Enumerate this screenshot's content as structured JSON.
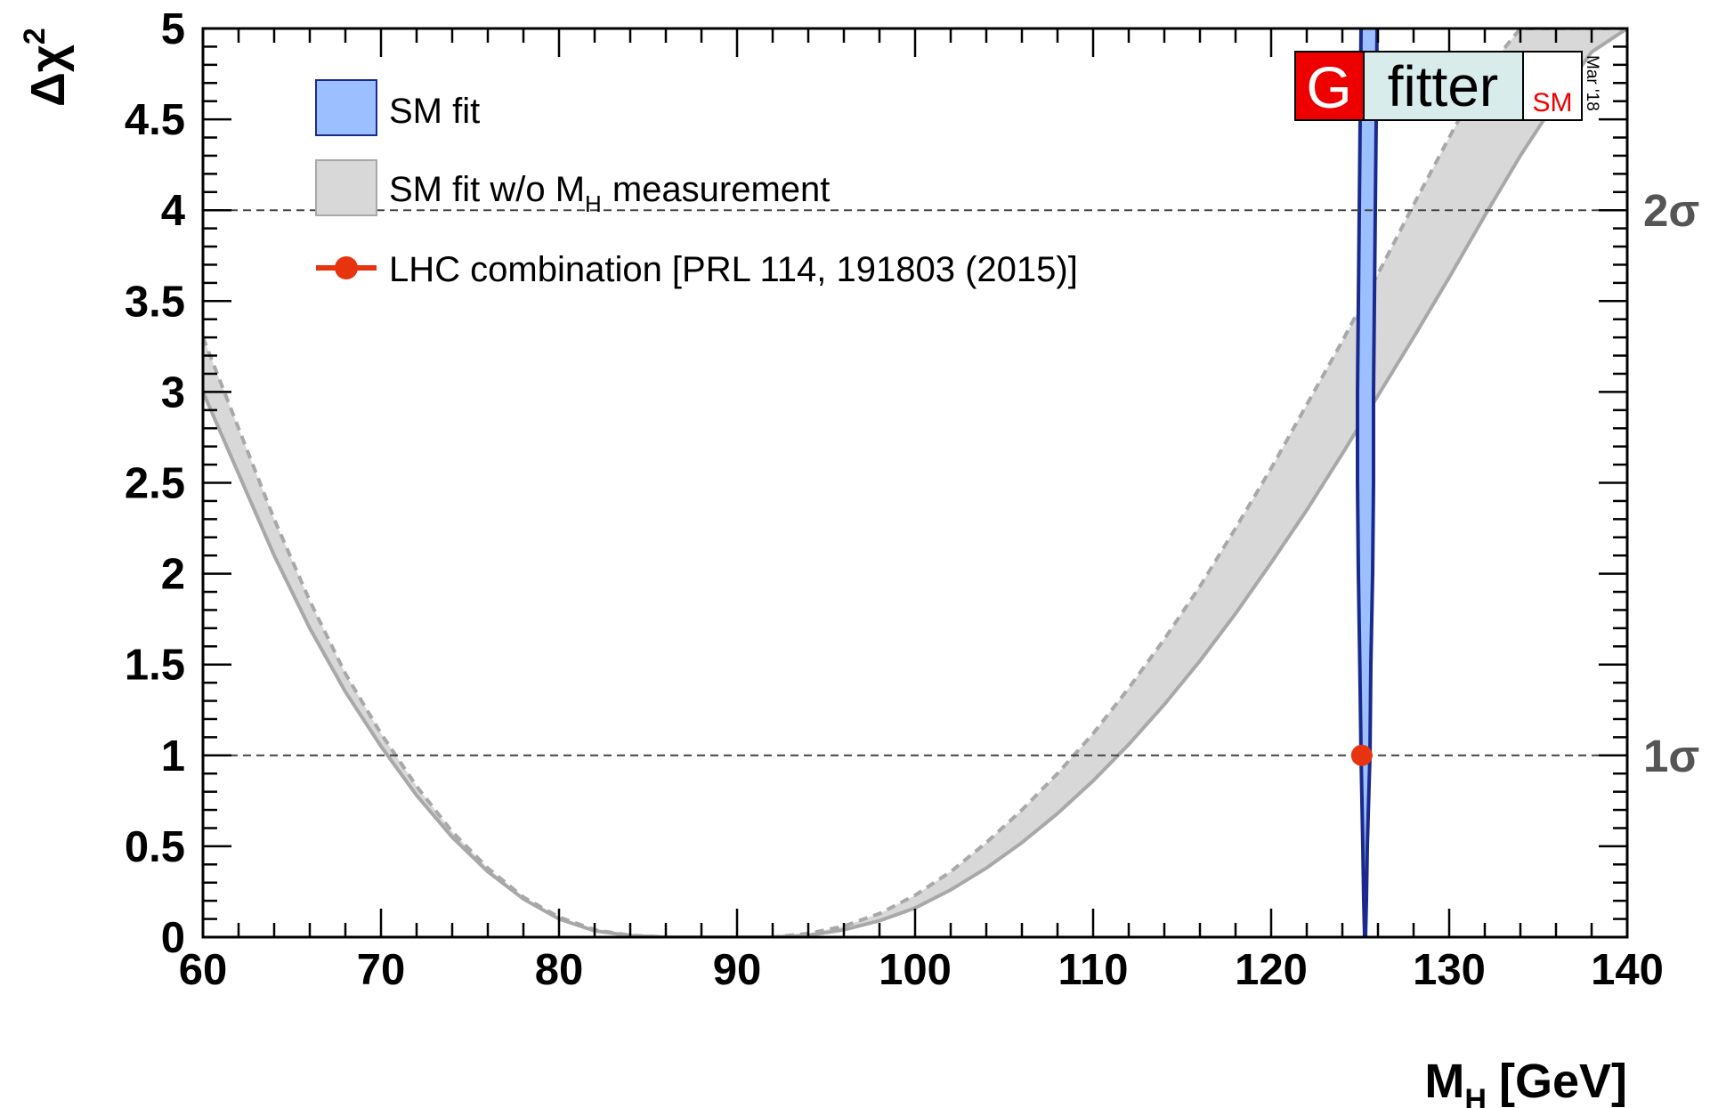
{
  "chart_data": {
    "type": "line",
    "xlabel": "M",
    "xlabel_sub": "H",
    "xlabel_unit": "[GeV]",
    "ylabel_base": "Δχ",
    "ylabel_sup": "2",
    "xlim": [
      60,
      140
    ],
    "ylim": [
      0,
      5
    ],
    "x_ticks": [
      60,
      70,
      80,
      90,
      100,
      110,
      120,
      130,
      140
    ],
    "y_ticks": [
      0,
      0.5,
      1,
      1.5,
      2,
      2.5,
      3,
      3.5,
      4,
      4.5,
      5
    ],
    "y_tick_labels": [
      "0",
      "0.5",
      "1",
      "1.5",
      "2",
      "2.5",
      "3",
      "3.5",
      "4",
      "4.5",
      "5"
    ],
    "grid": false,
    "legend_position": "top-left",
    "series": [
      {
        "name": "SM fit",
        "type": "band",
        "color": "#9cc0ff",
        "edge_color": "#1a2a8c",
        "lower": [
          [
            125.05,
            5.0
          ],
          [
            124.95,
            4.0
          ],
          [
            124.85,
            3.0
          ],
          [
            124.85,
            2.5
          ],
          [
            124.9,
            2.0
          ],
          [
            124.98,
            1.5
          ],
          [
            125.05,
            1.0
          ],
          [
            125.15,
            0.5
          ],
          [
            125.2,
            0.2
          ],
          [
            125.25,
            0.0
          ]
        ],
        "upper": [
          [
            125.95,
            5.0
          ],
          [
            125.85,
            4.0
          ],
          [
            125.75,
            3.0
          ],
          [
            125.75,
            2.5
          ],
          [
            125.7,
            2.0
          ],
          [
            125.6,
            1.5
          ],
          [
            125.55,
            1.0
          ],
          [
            125.4,
            0.5
          ],
          [
            125.35,
            0.2
          ],
          [
            125.3,
            0.0
          ]
        ]
      },
      {
        "name": "SM fit w/o M",
        "name_sub": "H",
        "name_suffix": "measurement",
        "type": "band",
        "color": "#d8d8d8",
        "edge_color": "#a8a8a8",
        "lower": [
          [
            60,
            3.0
          ],
          [
            62,
            2.55
          ],
          [
            64,
            2.1
          ],
          [
            66,
            1.7
          ],
          [
            68,
            1.35
          ],
          [
            70,
            1.05
          ],
          [
            72,
            0.78
          ],
          [
            74,
            0.55
          ],
          [
            76,
            0.36
          ],
          [
            78,
            0.21
          ],
          [
            80,
            0.1
          ],
          [
            82,
            0.035
          ],
          [
            84,
            0.008
          ],
          [
            86,
            0.0
          ],
          [
            88,
            0.0
          ],
          [
            90,
            0.0
          ],
          [
            92,
            0.0
          ],
          [
            94,
            0.01
          ],
          [
            96,
            0.04
          ],
          [
            98,
            0.09
          ],
          [
            100,
            0.16
          ],
          [
            102,
            0.26
          ],
          [
            104,
            0.38
          ],
          [
            106,
            0.52
          ],
          [
            108,
            0.68
          ],
          [
            110,
            0.86
          ],
          [
            112,
            1.06
          ],
          [
            114,
            1.28
          ],
          [
            116,
            1.52
          ],
          [
            118,
            1.78
          ],
          [
            120,
            2.06
          ],
          [
            122,
            2.35
          ],
          [
            124,
            2.66
          ],
          [
            126,
            2.98
          ],
          [
            128,
            3.3
          ],
          [
            130,
            3.63
          ],
          [
            132,
            3.97
          ],
          [
            134,
            4.3
          ],
          [
            136,
            4.6
          ],
          [
            138,
            4.87
          ],
          [
            140,
            5.0
          ]
        ],
        "upper": [
          [
            60,
            3.3
          ],
          [
            62,
            2.8
          ],
          [
            64,
            2.3
          ],
          [
            66,
            1.85
          ],
          [
            68,
            1.45
          ],
          [
            70,
            1.12
          ],
          [
            72,
            0.83
          ],
          [
            74,
            0.58
          ],
          [
            76,
            0.38
          ],
          [
            78,
            0.22
          ],
          [
            80,
            0.11
          ],
          [
            82,
            0.04
          ],
          [
            84,
            0.01
          ],
          [
            86,
            0.0
          ],
          [
            88,
            0.0
          ],
          [
            90,
            0.0
          ],
          [
            92,
            0.0
          ],
          [
            94,
            0.02
          ],
          [
            96,
            0.06
          ],
          [
            98,
            0.13
          ],
          [
            100,
            0.23
          ],
          [
            102,
            0.36
          ],
          [
            104,
            0.52
          ],
          [
            106,
            0.7
          ],
          [
            108,
            0.9
          ],
          [
            110,
            1.12
          ],
          [
            112,
            1.37
          ],
          [
            114,
            1.64
          ],
          [
            116,
            1.93
          ],
          [
            118,
            2.25
          ],
          [
            120,
            2.58
          ],
          [
            122,
            2.93
          ],
          [
            124,
            3.28
          ],
          [
            126,
            3.65
          ],
          [
            128,
            4.03
          ],
          [
            130,
            4.4
          ],
          [
            132,
            4.76
          ],
          [
            134,
            5.0
          ],
          [
            140,
            5.0
          ]
        ]
      },
      {
        "name": "LHC combination [PRL 114, 191803 (2015)]",
        "type": "point",
        "color": "#e8330f",
        "x": 125.09,
        "y": 1.0
      }
    ],
    "reference_lines": [
      {
        "y": 4.0,
        "label": "2σ"
      },
      {
        "y": 1.0,
        "label": "1σ"
      }
    ]
  },
  "logo": {
    "letter": "G",
    "word": "fitter",
    "sub": "SM",
    "date": "Mar '18",
    "letter_bg": "#ee0000",
    "word_bg": "#d8ecec",
    "sub_color": "#ee0000"
  },
  "colors": {
    "axis": "#000000",
    "dashed": "#444444"
  }
}
